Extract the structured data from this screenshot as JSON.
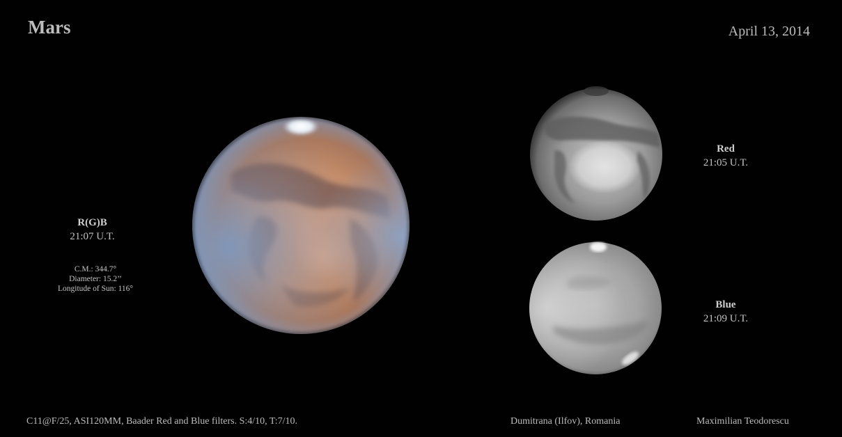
{
  "header": {
    "title": "Mars",
    "date": "April 13, 2014"
  },
  "panels": {
    "rgb": {
      "name": "R(G)B",
      "time": "21:07 U.T."
    },
    "red": {
      "name": "Red",
      "time": "21:05 U.T."
    },
    "blue": {
      "name": "Blue",
      "time": "21:09 U.T."
    }
  },
  "parameters": {
    "cm": "C.M.:  344.7°",
    "diameter": "Diameter:  15.2’’",
    "sun_longitude": "Longitude of Sun: 116°"
  },
  "footer": {
    "equipment": "C11@F/25, ASI120MM, Baader Red and Blue filters. S:4/10, T:7/10.",
    "location": "Dumitrana (Ilfov), Romania",
    "observer": "Maximilian Teodorescu"
  },
  "colors": {
    "background": "#000000",
    "mars_ochre": "#c98f6a",
    "mars_limb_blue": "#7f98bd",
    "mars_dark_marking": "#6d4b43",
    "polar_cap": "#e7eef5",
    "mono_light": "#d7d7d7",
    "mono_mid": "#9a9a9a",
    "mono_dark": "#5d5d5d"
  }
}
